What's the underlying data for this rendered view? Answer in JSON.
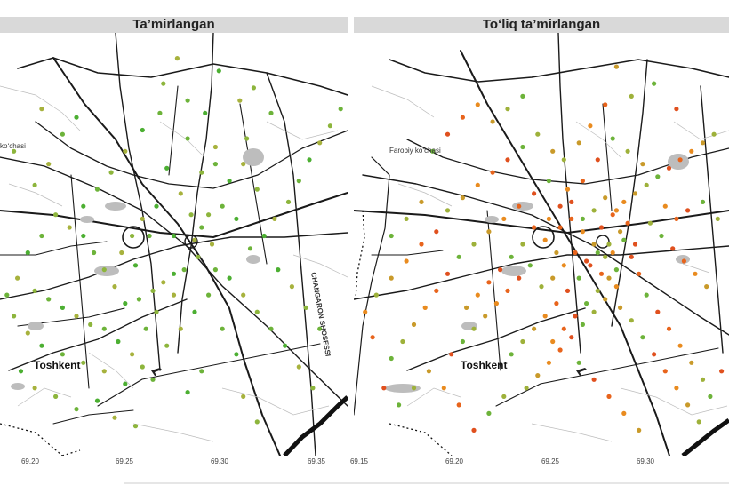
{
  "panels": [
    {
      "title": "Ta’mirlangan",
      "x_ticks": [
        "69.20",
        "69.25",
        "69.30",
        "69.35"
      ],
      "city_label": "Toshkent",
      "street_labels": [
        "koʻchasi",
        "CHANGARON SHOSESSI"
      ],
      "map_features": [
        "road-network",
        "railway",
        "river",
        "airport-icon"
      ],
      "point_colors": [
        "#4caf32",
        "#6db33a",
        "#8db53c",
        "#a7b23d"
      ],
      "points": [
        [
          0.51,
          0.06
        ],
        [
          0.47,
          0.12
        ],
        [
          0.54,
          0.16
        ],
        [
          0.63,
          0.09
        ],
        [
          0.69,
          0.16
        ],
        [
          0.73,
          0.13
        ],
        [
          0.78,
          0.19
        ],
        [
          0.59,
          0.19
        ],
        [
          0.62,
          0.27
        ],
        [
          0.71,
          0.25
        ],
        [
          0.54,
          0.25
        ],
        [
          0.48,
          0.32
        ],
        [
          0.52,
          0.38
        ],
        [
          0.55,
          0.43
        ],
        [
          0.58,
          0.46
        ],
        [
          0.45,
          0.41
        ],
        [
          0.41,
          0.44
        ],
        [
          0.38,
          0.48
        ],
        [
          0.43,
          0.48
        ],
        [
          0.5,
          0.48
        ],
        [
          0.56,
          0.49
        ],
        [
          0.6,
          0.43
        ],
        [
          0.64,
          0.41
        ],
        [
          0.68,
          0.44
        ],
        [
          0.61,
          0.5
        ],
        [
          0.57,
          0.53
        ],
        [
          0.53,
          0.56
        ],
        [
          0.5,
          0.57
        ],
        [
          0.47,
          0.59
        ],
        [
          0.44,
          0.61
        ],
        [
          0.4,
          0.63
        ],
        [
          0.36,
          0.64
        ],
        [
          0.33,
          0.6
        ],
        [
          0.3,
          0.56
        ],
        [
          0.27,
          0.52
        ],
        [
          0.24,
          0.48
        ],
        [
          0.2,
          0.46
        ],
        [
          0.16,
          0.43
        ],
        [
          0.12,
          0.48
        ],
        [
          0.08,
          0.52
        ],
        [
          0.05,
          0.58
        ],
        [
          0.1,
          0.61
        ],
        [
          0.14,
          0.63
        ],
        [
          0.18,
          0.65
        ],
        [
          0.22,
          0.67
        ],
        [
          0.26,
          0.69
        ],
        [
          0.3,
          0.7
        ],
        [
          0.34,
          0.73
        ],
        [
          0.38,
          0.76
        ],
        [
          0.41,
          0.79
        ],
        [
          0.44,
          0.82
        ],
        [
          0.36,
          0.83
        ],
        [
          0.3,
          0.8
        ],
        [
          0.24,
          0.78
        ],
        [
          0.18,
          0.76
        ],
        [
          0.12,
          0.74
        ],
        [
          0.08,
          0.71
        ],
        [
          0.04,
          0.67
        ],
        [
          0.02,
          0.62
        ],
        [
          0.06,
          0.8
        ],
        [
          0.1,
          0.84
        ],
        [
          0.16,
          0.86
        ],
        [
          0.22,
          0.89
        ],
        [
          0.28,
          0.87
        ],
        [
          0.33,
          0.91
        ],
        [
          0.39,
          0.93
        ],
        [
          0.62,
          0.56
        ],
        [
          0.66,
          0.58
        ],
        [
          0.7,
          0.62
        ],
        [
          0.74,
          0.66
        ],
        [
          0.78,
          0.7
        ],
        [
          0.82,
          0.74
        ],
        [
          0.86,
          0.79
        ],
        [
          0.9,
          0.84
        ],
        [
          0.72,
          0.51
        ],
        [
          0.76,
          0.48
        ],
        [
          0.79,
          0.44
        ],
        [
          0.83,
          0.4
        ],
        [
          0.86,
          0.35
        ],
        [
          0.89,
          0.3
        ],
        [
          0.92,
          0.26
        ],
        [
          0.95,
          0.22
        ],
        [
          0.98,
          0.18
        ],
        [
          0.8,
          0.56
        ],
        [
          0.84,
          0.6
        ],
        [
          0.88,
          0.65
        ],
        [
          0.92,
          0.7
        ],
        [
          0.66,
          0.35
        ],
        [
          0.7,
          0.31
        ],
        [
          0.74,
          0.37
        ],
        [
          0.46,
          0.19
        ],
        [
          0.41,
          0.23
        ],
        [
          0.36,
          0.28
        ],
        [
          0.32,
          0.33
        ],
        [
          0.28,
          0.37
        ],
        [
          0.24,
          0.41
        ],
        [
          0.14,
          0.31
        ],
        [
          0.1,
          0.36
        ],
        [
          0.18,
          0.24
        ],
        [
          0.22,
          0.2
        ],
        [
          0.12,
          0.18
        ],
        [
          0.04,
          0.28
        ],
        [
          0.6,
          0.62
        ],
        [
          0.56,
          0.66
        ],
        [
          0.52,
          0.7
        ],
        [
          0.48,
          0.74
        ],
        [
          0.64,
          0.7
        ],
        [
          0.68,
          0.76
        ],
        [
          0.7,
          0.86
        ],
        [
          0.74,
          0.92
        ],
        [
          0.58,
          0.8
        ],
        [
          0.54,
          0.85
        ],
        [
          0.5,
          0.62
        ],
        [
          0.45,
          0.66
        ],
        [
          0.42,
          0.7
        ],
        [
          0.39,
          0.55
        ],
        [
          0.35,
          0.52
        ],
        [
          0.58,
          0.33
        ],
        [
          0.62,
          0.31
        ]
      ]
    },
    {
      "title": "Toʻliq ta’mirlangan",
      "x_ticks": [
        "69.15",
        "69.20",
        "69.25",
        "69.30"
      ],
      "city_label": "Toshkent",
      "street_labels": [
        "Farobiy koʻchasi"
      ],
      "map_features": [
        "road-network",
        "railway",
        "river",
        "airport-icon"
      ],
      "point_colors": [
        "#e0501e",
        "#e8641c",
        "#e98b1f",
        "#c99a2a",
        "#9eb13a",
        "#6db33a"
      ],
      "points": [
        [
          0.7,
          0.08
        ],
        [
          0.74,
          0.15
        ],
        [
          0.8,
          0.12
        ],
        [
          0.86,
          0.18
        ],
        [
          0.67,
          0.17
        ],
        [
          0.63,
          0.22
        ],
        [
          0.6,
          0.26
        ],
        [
          0.56,
          0.3
        ],
        [
          0.52,
          0.35
        ],
        [
          0.48,
          0.38
        ],
        [
          0.44,
          0.41
        ],
        [
          0.4,
          0.44
        ],
        [
          0.36,
          0.47
        ],
        [
          0.32,
          0.5
        ],
        [
          0.28,
          0.53
        ],
        [
          0.25,
          0.57
        ],
        [
          0.22,
          0.61
        ],
        [
          0.19,
          0.65
        ],
        [
          0.16,
          0.69
        ],
        [
          0.13,
          0.73
        ],
        [
          0.1,
          0.77
        ],
        [
          0.55,
          0.41
        ],
        [
          0.58,
          0.44
        ],
        [
          0.61,
          0.47
        ],
        [
          0.64,
          0.5
        ],
        [
          0.67,
          0.53
        ],
        [
          0.7,
          0.56
        ],
        [
          0.66,
          0.46
        ],
        [
          0.69,
          0.43
        ],
        [
          0.72,
          0.4
        ],
        [
          0.75,
          0.38
        ],
        [
          0.78,
          0.36
        ],
        [
          0.81,
          0.34
        ],
        [
          0.84,
          0.32
        ],
        [
          0.87,
          0.3
        ],
        [
          0.9,
          0.28
        ],
        [
          0.93,
          0.26
        ],
        [
          0.96,
          0.24
        ],
        [
          0.72,
          0.49
        ],
        [
          0.74,
          0.53
        ],
        [
          0.76,
          0.57
        ],
        [
          0.7,
          0.6
        ],
        [
          0.67,
          0.63
        ],
        [
          0.64,
          0.66
        ],
        [
          0.61,
          0.69
        ],
        [
          0.58,
          0.72
        ],
        [
          0.55,
          0.75
        ],
        [
          0.52,
          0.78
        ],
        [
          0.49,
          0.81
        ],
        [
          0.46,
          0.84
        ],
        [
          0.6,
          0.58
        ],
        [
          0.57,
          0.61
        ],
        [
          0.54,
          0.64
        ],
        [
          0.51,
          0.67
        ],
        [
          0.48,
          0.7
        ],
        [
          0.45,
          0.73
        ],
        [
          0.42,
          0.76
        ],
        [
          0.63,
          0.55
        ],
        [
          0.66,
          0.57
        ],
        [
          0.69,
          0.52
        ],
        [
          0.71,
          0.47
        ],
        [
          0.68,
          0.5
        ],
        [
          0.65,
          0.52
        ],
        [
          0.62,
          0.54
        ],
        [
          0.59,
          0.52
        ],
        [
          0.56,
          0.55
        ],
        [
          0.53,
          0.58
        ],
        [
          0.5,
          0.6
        ],
        [
          0.47,
          0.55
        ],
        [
          0.44,
          0.58
        ],
        [
          0.41,
          0.61
        ],
        [
          0.38,
          0.64
        ],
        [
          0.35,
          0.67
        ],
        [
          0.32,
          0.7
        ],
        [
          0.29,
          0.73
        ],
        [
          0.26,
          0.76
        ],
        [
          0.48,
          0.46
        ],
        [
          0.51,
          0.49
        ],
        [
          0.54,
          0.52
        ],
        [
          0.45,
          0.5
        ],
        [
          0.42,
          0.53
        ],
        [
          0.39,
          0.56
        ],
        [
          0.36,
          0.59
        ],
        [
          0.33,
          0.62
        ],
        [
          0.3,
          0.65
        ],
        [
          0.79,
          0.45
        ],
        [
          0.82,
          0.48
        ],
        [
          0.85,
          0.51
        ],
        [
          0.88,
          0.54
        ],
        [
          0.91,
          0.57
        ],
        [
          0.94,
          0.6
        ],
        [
          0.97,
          0.44
        ],
        [
          0.93,
          0.4
        ],
        [
          0.89,
          0.42
        ],
        [
          0.86,
          0.44
        ],
        [
          0.83,
          0.41
        ],
        [
          0.77,
          0.31
        ],
        [
          0.73,
          0.28
        ],
        [
          0.69,
          0.25
        ],
        [
          0.65,
          0.3
        ],
        [
          0.61,
          0.35
        ],
        [
          0.57,
          0.37
        ],
        [
          0.53,
          0.28
        ],
        [
          0.49,
          0.24
        ],
        [
          0.45,
          0.27
        ],
        [
          0.41,
          0.3
        ],
        [
          0.37,
          0.33
        ],
        [
          0.33,
          0.36
        ],
        [
          0.29,
          0.39
        ],
        [
          0.25,
          0.42
        ],
        [
          0.21,
          0.28
        ],
        [
          0.25,
          0.24
        ],
        [
          0.29,
          0.2
        ],
        [
          0.33,
          0.17
        ],
        [
          0.37,
          0.21
        ],
        [
          0.41,
          0.18
        ],
        [
          0.45,
          0.15
        ],
        [
          0.22,
          0.47
        ],
        [
          0.18,
          0.5
        ],
        [
          0.14,
          0.54
        ],
        [
          0.1,
          0.58
        ],
        [
          0.06,
          0.62
        ],
        [
          0.78,
          0.62
        ],
        [
          0.81,
          0.66
        ],
        [
          0.84,
          0.7
        ],
        [
          0.87,
          0.74
        ],
        [
          0.9,
          0.78
        ],
        [
          0.93,
          0.82
        ],
        [
          0.6,
          0.78
        ],
        [
          0.64,
          0.82
        ],
        [
          0.68,
          0.86
        ],
        [
          0.72,
          0.9
        ],
        [
          0.76,
          0.94
        ],
        [
          0.4,
          0.86
        ],
        [
          0.36,
          0.9
        ],
        [
          0.32,
          0.94
        ],
        [
          0.28,
          0.88
        ],
        [
          0.24,
          0.84
        ],
        [
          0.2,
          0.8
        ],
        [
          0.16,
          0.84
        ],
        [
          0.12,
          0.88
        ],
        [
          0.08,
          0.84
        ],
        [
          0.05,
          0.72
        ],
        [
          0.03,
          0.66
        ],
        [
          0.18,
          0.4
        ],
        [
          0.14,
          0.44
        ],
        [
          0.1,
          0.48
        ],
        [
          0.75,
          0.5
        ],
        [
          0.73,
          0.45
        ],
        [
          0.7,
          0.42
        ],
        [
          0.67,
          0.39
        ],
        [
          0.64,
          0.42
        ],
        [
          0.61,
          0.44
        ],
        [
          0.58,
          0.4
        ],
        [
          0.55,
          0.46
        ],
        [
          0.52,
          0.44
        ],
        [
          0.68,
          0.58
        ],
        [
          0.65,
          0.61
        ],
        [
          0.62,
          0.64
        ],
        [
          0.59,
          0.67
        ],
        [
          0.56,
          0.7
        ],
        [
          0.53,
          0.73
        ],
        [
          0.71,
          0.65
        ],
        [
          0.74,
          0.68
        ],
        [
          0.77,
          0.72
        ],
        [
          0.8,
          0.76
        ],
        [
          0.83,
          0.8
        ],
        [
          0.86,
          0.84
        ],
        [
          0.89,
          0.88
        ],
        [
          0.92,
          0.92
        ],
        [
          0.95,
          0.86
        ],
        [
          0.98,
          0.8
        ]
      ]
    }
  ]
}
